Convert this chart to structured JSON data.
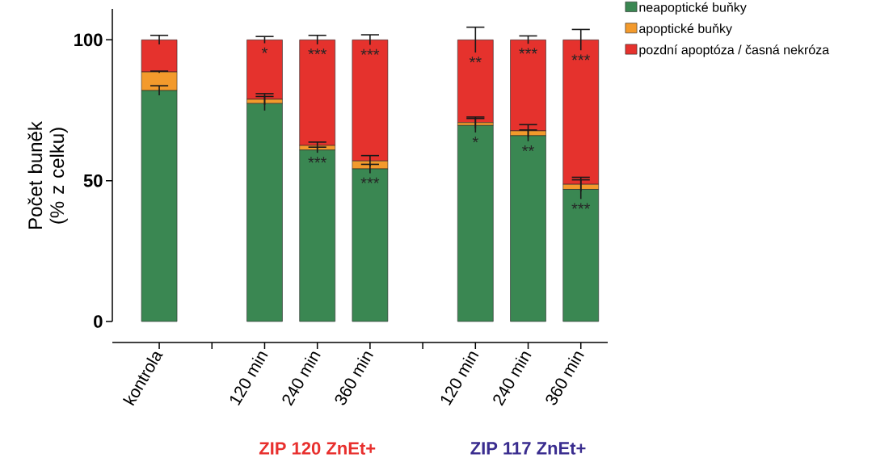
{
  "chart_data": {
    "type": "bar",
    "stacked": true,
    "ylabel": "Počet buněk (% z celku)",
    "categories": [
      "kontrola",
      null,
      "120 min",
      "240 min",
      "360 min",
      null,
      "120 min",
      "240 min",
      "360 min"
    ],
    "series": [
      {
        "name": "neapoptické buňky",
        "color": "#3a8752",
        "values": [
          82.0,
          null,
          77.4,
          60.9,
          54.2,
          null,
          69.6,
          66.0,
          46.9
        ],
        "errors": [
          1.7,
          null,
          2.5,
          1.0,
          1.6,
          null,
          2.5,
          2.0,
          3.4
        ],
        "value_labels": [
          null,
          null,
          null,
          "***",
          "***",
          null,
          "*",
          "**",
          "***"
        ]
      },
      {
        "name": "apoptické buňky",
        "color": "#f39a2c",
        "values": [
          6.6,
          null,
          1.5,
          1.6,
          2.8,
          null,
          1.0,
          1.7,
          1.8
        ],
        "errors": [
          0.3,
          null,
          2.0,
          1.2,
          1.9,
          null,
          2.0,
          2.2,
          2.5
        ]
      },
      {
        "name": "pozdní apoptóza / časná nekróza",
        "color": "#e5322d",
        "values": [
          11.4,
          null,
          21.1,
          37.5,
          43.0,
          null,
          29.4,
          32.3,
          51.3
        ],
        "errors": [
          1.6,
          null,
          1.2,
          1.6,
          1.8,
          null,
          4.5,
          1.4,
          3.7
        ],
        "value_labels": [
          null,
          null,
          "*",
          "***",
          "***",
          null,
          "**",
          "***",
          "***"
        ]
      }
    ],
    "ylim": [
      0,
      111
    ],
    "yticks": [
      0,
      50,
      100
    ],
    "grid": false,
    "legend": "top right",
    "annotations": [
      "ZIP 120  ZnEt+",
      "ZIP 117  ZnEt+"
    ]
  }
}
